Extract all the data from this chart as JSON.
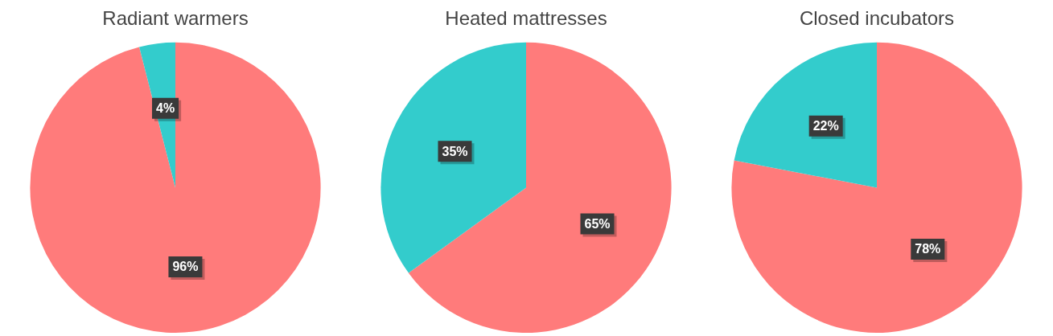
{
  "chart_data": [
    {
      "type": "pie",
      "title": "Radiant warmers",
      "categories": [
        null,
        null
      ],
      "values": [
        96,
        4
      ],
      "colors": [
        "#ff7b7b",
        "#33cccc"
      ],
      "value_labels": [
        "96%",
        "4%"
      ],
      "legend": false
    },
    {
      "type": "pie",
      "title": "Heated mattresses",
      "categories": [
        null,
        null
      ],
      "values": [
        65,
        35
      ],
      "colors": [
        "#ff7b7b",
        "#33cccc"
      ],
      "value_labels": [
        "65%",
        "35%"
      ],
      "legend": false
    },
    {
      "type": "pie",
      "title": "Closed incubators",
      "categories": [
        null,
        null
      ],
      "values": [
        78,
        22
      ],
      "colors": [
        "#ff7b7b",
        "#33cccc"
      ],
      "value_labels": [
        "78%",
        "22%"
      ],
      "legend": false
    }
  ]
}
